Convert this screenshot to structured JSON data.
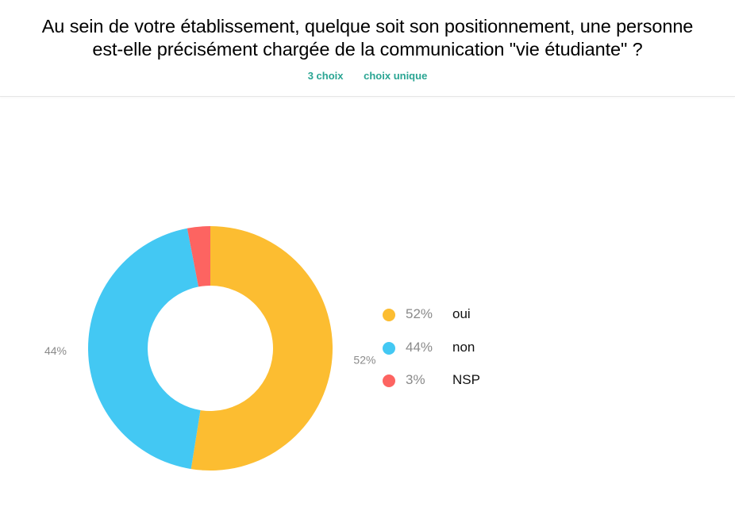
{
  "header": {
    "title_line1": "Au sein de votre établissement, quelque soit son positionnement, une personne",
    "title_line2": "est-elle précisément chargée de la communication \"vie étudiante\" ?",
    "choices_count": "3 choix",
    "choice_type": "choix unique"
  },
  "chart_data": {
    "type": "pie",
    "title": "Au sein de votre établissement, quelque soit son positionnement, une personne est-elle précisément chargée de la communication \"vie étudiante\" ?",
    "categories": [
      "oui",
      "non",
      "NSP"
    ],
    "values": [
      52,
      44,
      3
    ],
    "value_labels": [
      "52%",
      "44%",
      "3%"
    ],
    "colors": [
      "#fcbd31",
      "#43c8f3",
      "#fd6461"
    ],
    "donut": true,
    "legend_position": "right"
  },
  "legend": {
    "items": [
      {
        "pct": "52%",
        "label": "oui",
        "color": "#fcbd31"
      },
      {
        "pct": "44%",
        "label": "non",
        "color": "#43c8f3"
      },
      {
        "pct": "3%",
        "label": "NSP",
        "color": "#fd6461"
      }
    ]
  }
}
